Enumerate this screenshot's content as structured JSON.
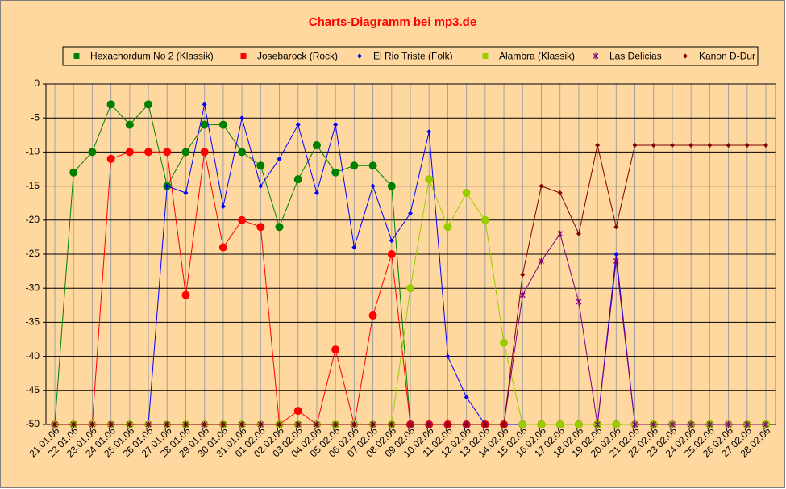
{
  "chart_data": {
    "type": "line",
    "title": "Charts-Diagramm bei mp3.de",
    "categories": [
      "21.01.06",
      "22.01.06",
      "23.01.06",
      "24.01.06",
      "25.01.06",
      "26.01.06",
      "27.01.06",
      "28.01.06",
      "29.01.06",
      "30.01.06",
      "31.01.06",
      "01.02.06",
      "02.02.06",
      "03.02.06",
      "04.02.06",
      "05.02.06",
      "06.02.06",
      "07.02.06",
      "08.02.06",
      "09.02.06",
      "10.02.06",
      "11.02.06",
      "12.02.06",
      "13.02.06",
      "14.02.06",
      "15.02.06",
      "16.02.06",
      "17.02.06",
      "18.02.06",
      "19.02.06",
      "20.02.06",
      "21.02.06",
      "22.02.06",
      "23.02.06",
      "24.02.06",
      "25.02.06",
      "26.02.06",
      "27.02.06",
      "28.02.06"
    ],
    "series": [
      {
        "name": "Hexachordum No 2 (Klassik)",
        "color": "#008000",
        "marker": "circle",
        "values": [
          -50,
          -13,
          -10,
          -3,
          -6,
          -3,
          -15,
          -10,
          -6,
          -6,
          -10,
          -12,
          -21,
          -14,
          -9,
          -13,
          -12,
          -12,
          -15,
          -50,
          -50,
          -50,
          -50,
          -50,
          -50,
          -50,
          -50,
          -50,
          -50,
          -50,
          -50,
          -50,
          -50,
          -50,
          -50,
          -50,
          -50,
          -50,
          -50
        ]
      },
      {
        "name": "Josebarock (Rock)",
        "color": "#ff0000",
        "marker": "circle",
        "values": [
          -50,
          -50,
          -50,
          -11,
          -10,
          -10,
          -10,
          -31,
          -10,
          -24,
          -20,
          -21,
          -50,
          -48,
          -50,
          -39,
          -50,
          -34,
          -25,
          -50,
          -50,
          -50,
          -50,
          -50,
          -50,
          -50,
          -50,
          -50,
          -50,
          -50,
          -50,
          -50,
          -50,
          -50,
          -50,
          -50,
          -50,
          -50,
          -50
        ]
      },
      {
        "name": "El Rio Triste (Folk)",
        "color": "#0000ff",
        "marker": "diamond",
        "values": [
          -50,
          -50,
          -50,
          -50,
          -50,
          -50,
          -15,
          -16,
          -3,
          -18,
          -5,
          -15,
          -11,
          -6,
          -16,
          -6,
          -24,
          -15,
          -23,
          -19,
          -7,
          -40,
          -46,
          -50,
          -50,
          -50,
          -50,
          -50,
          -50,
          -50,
          -25,
          -50,
          -50,
          -50,
          -50,
          -50,
          -50,
          -50,
          -50
        ]
      },
      {
        "name": "Alambra (Klassik)",
        "color": "#99cc00",
        "marker": "circle",
        "values": [
          -50,
          -50,
          -50,
          -50,
          -50,
          -50,
          -50,
          -50,
          -50,
          -50,
          -50,
          -50,
          -50,
          -50,
          -50,
          -50,
          -50,
          -50,
          -50,
          -30,
          -14,
          -21,
          -16,
          -20,
          -38,
          -50,
          -50,
          -50,
          -50,
          -50,
          -50,
          -50,
          -50,
          -50,
          -50,
          -50,
          -50,
          -50,
          -50
        ]
      },
      {
        "name": "Las Delicias",
        "color": "#800080",
        "marker": "x",
        "values": [
          -50,
          -50,
          -50,
          -50,
          -50,
          -50,
          -50,
          -50,
          -50,
          -50,
          -50,
          -50,
          -50,
          -50,
          -50,
          -50,
          -50,
          -50,
          -50,
          -50,
          -50,
          -50,
          -50,
          -50,
          -50,
          -31,
          -26,
          -22,
          -32,
          -50,
          -26,
          -50,
          -50,
          -50,
          -50,
          -50,
          -50,
          -50,
          -50
        ]
      },
      {
        "name": "Kanon D-Dur",
        "color": "#800000",
        "marker": "diamond",
        "values": [
          -50,
          -50,
          -50,
          -50,
          -50,
          -50,
          -50,
          -50,
          -50,
          -50,
          -50,
          -50,
          -50,
          -50,
          -50,
          -50,
          -50,
          -50,
          -50,
          -50,
          -50,
          -50,
          -50,
          -50,
          -50,
          -28,
          -15,
          -16,
          -22,
          -9,
          -21,
          -9,
          -9,
          -9,
          -9,
          -9,
          -9,
          -9,
          -9
        ]
      }
    ],
    "ylim": [
      -50,
      0
    ],
    "yticks": [
      0,
      -5,
      -10,
      -15,
      -20,
      -25,
      -30,
      -35,
      -40,
      -45,
      -50
    ],
    "grid": true,
    "legend": "top"
  }
}
